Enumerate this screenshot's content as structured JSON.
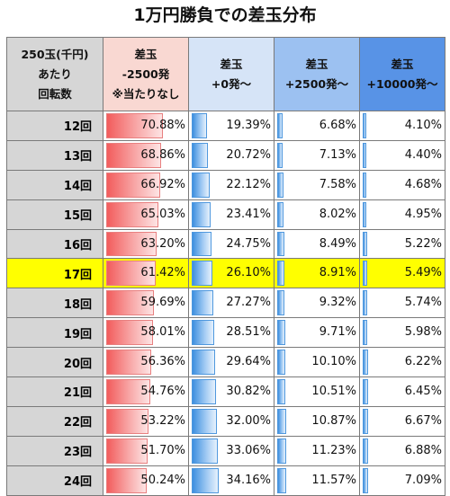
{
  "title": "1万円勝負での差玉分布",
  "chart_data": {
    "type": "table",
    "title": "1万円勝負での差玉分布",
    "headers": [
      [
        "250玉(千円)",
        "あたり",
        "回転数"
      ],
      [
        "差玉",
        "-2500発",
        "※当たりなし"
      ],
      [
        "差玉",
        "+0発～"
      ],
      [
        "差玉",
        "+2500発～"
      ],
      [
        "差玉",
        "+10000発～"
      ]
    ],
    "highlight_row": "17回",
    "highlight_color": "#ffff00",
    "rows": [
      {
        "label": "12回",
        "values": [
          70.88,
          19.39,
          6.68,
          4.1
        ],
        "text": [
          "70.88%",
          "19.39%",
          "6.68%",
          "4.10%"
        ]
      },
      {
        "label": "13回",
        "values": [
          68.86,
          20.72,
          7.13,
          4.4
        ],
        "text": [
          "68.86%",
          "20.72%",
          "7.13%",
          "4.40%"
        ]
      },
      {
        "label": "14回",
        "values": [
          66.92,
          22.12,
          7.58,
          4.68
        ],
        "text": [
          "66.92%",
          "22.12%",
          "7.58%",
          "4.68%"
        ]
      },
      {
        "label": "15回",
        "values": [
          65.03,
          23.41,
          8.02,
          4.95
        ],
        "text": [
          "65.03%",
          "23.41%",
          "8.02%",
          "4.95%"
        ]
      },
      {
        "label": "16回",
        "values": [
          63.2,
          24.75,
          8.49,
          5.22
        ],
        "text": [
          "63.20%",
          "24.75%",
          "8.49%",
          "5.22%"
        ]
      },
      {
        "label": "17回",
        "values": [
          61.42,
          26.1,
          8.91,
          5.49
        ],
        "text": [
          "61.42%",
          "26.10%",
          "8.91%",
          "5.49%"
        ]
      },
      {
        "label": "18回",
        "values": [
          59.69,
          27.27,
          9.32,
          5.74
        ],
        "text": [
          "59.69%",
          "27.27%",
          "9.32%",
          "5.74%"
        ]
      },
      {
        "label": "19回",
        "values": [
          58.01,
          28.51,
          9.71,
          5.98
        ],
        "text": [
          "58.01%",
          "28.51%",
          "9.71%",
          "5.98%"
        ]
      },
      {
        "label": "20回",
        "values": [
          56.36,
          29.64,
          10.1,
          6.22
        ],
        "text": [
          "56.36%",
          "29.64%",
          "10.10%",
          "6.22%"
        ]
      },
      {
        "label": "21回",
        "values": [
          54.76,
          30.82,
          10.51,
          6.45
        ],
        "text": [
          "54.76%",
          "30.82%",
          "10.51%",
          "6.45%"
        ]
      },
      {
        "label": "22回",
        "values": [
          53.22,
          32.0,
          10.87,
          6.67
        ],
        "text": [
          "53.22%",
          "32.00%",
          "10.87%",
          "6.67%"
        ]
      },
      {
        "label": "23回",
        "values": [
          51.7,
          33.06,
          11.23,
          6.88
        ],
        "text": [
          "51.70%",
          "33.06%",
          "11.23%",
          "6.88%"
        ]
      },
      {
        "label": "24回",
        "values": [
          50.24,
          34.16,
          11.57,
          7.09
        ],
        "text": [
          "50.24%",
          "34.16%",
          "11.57%",
          "7.09%"
        ]
      }
    ],
    "bar_colors": [
      "#f25c5c",
      "#3d8fdf",
      "#3d8fdf",
      "#3d8fdf"
    ]
  }
}
